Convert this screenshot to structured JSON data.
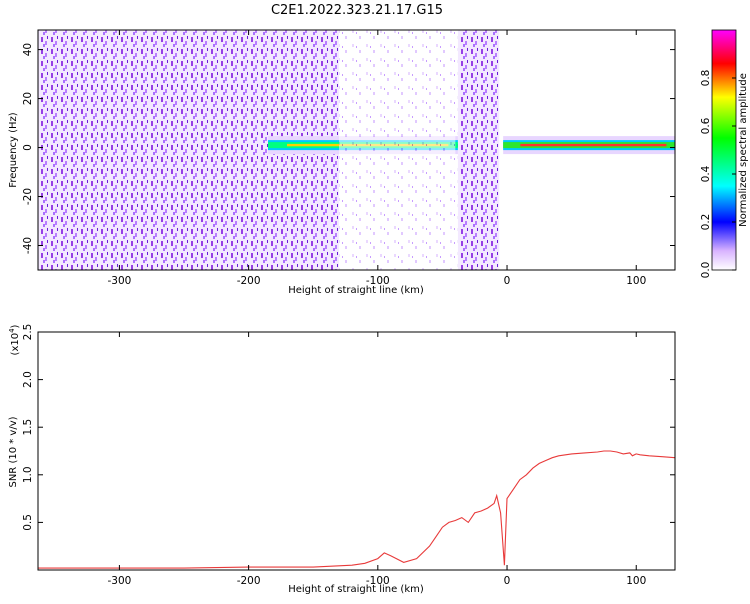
{
  "title": "C2E1.2022.323.21.17.G15",
  "chart_data": [
    {
      "type": "heatmap",
      "xlabel": "Height of straight line (km)",
      "ylabel": "Frequency (Hz)",
      "xlim": [
        -363,
        130
      ],
      "ylim": [
        -50,
        48
      ],
      "x_ticks": [
        -300,
        -200,
        -100,
        0,
        100
      ],
      "y_ticks": [
        -40,
        -20,
        0,
        20,
        40
      ],
      "colorbar": {
        "label": "Normalized spectral amplitude",
        "range": [
          0,
          1
        ],
        "ticks": [
          0.0,
          0.2,
          0.4,
          0.6,
          0.8
        ],
        "colormap": [
          "#ff00ff",
          "#ff0000",
          "#ffff00",
          "#00ff00",
          "#00ffff",
          "#0000ff",
          "#ffffff"
        ]
      },
      "regions": [
        {
          "label": "scattered noise",
          "x": [
            -363,
            -130
          ],
          "level": 0.15
        },
        {
          "label": "signal band near 0 Hz",
          "x": [
            -185,
            -38
          ],
          "freq": 1,
          "level": 0.45
        },
        {
          "label": "noise strip",
          "x": [
            -38,
            -6
          ],
          "level": 0.15
        },
        {
          "label": "strong signal band near 0 Hz",
          "x": [
            -3,
            130
          ],
          "freq": 1,
          "level": 0.65
        }
      ]
    },
    {
      "type": "line",
      "xlabel": "Height of straight line (km)",
      "ylabel": "SNR (10 * v/v)",
      "y_multiplier": "(x10",
      "y_multiplier_exp": "4",
      "y_multiplier_close": ")",
      "xlim": [
        -363,
        130
      ],
      "ylim": [
        0,
        2.5
      ],
      "x_ticks": [
        -300,
        -200,
        -100,
        0,
        100
      ],
      "y_ticks": [
        0.5,
        1.0,
        1.5,
        2.0,
        2.5
      ],
      "series": [
        {
          "color": "#e83a3a",
          "x": [
            -363,
            -300,
            -250,
            -200,
            -150,
            -120,
            -110,
            -100,
            -95,
            -90,
            -80,
            -70,
            -60,
            -55,
            -50,
            -45,
            -40,
            -35,
            -30,
            -25,
            -20,
            -15,
            -10,
            -8,
            -5,
            -2,
            0,
            5,
            10,
            15,
            20,
            25,
            30,
            35,
            40,
            50,
            60,
            70,
            75,
            80,
            85,
            90,
            95,
            97,
            100,
            103,
            110,
            120,
            130
          ],
          "y": [
            0.02,
            0.02,
            0.02,
            0.03,
            0.03,
            0.05,
            0.07,
            0.12,
            0.18,
            0.15,
            0.08,
            0.12,
            0.25,
            0.35,
            0.45,
            0.5,
            0.52,
            0.55,
            0.5,
            0.6,
            0.62,
            0.65,
            0.7,
            0.78,
            0.6,
            0.05,
            0.75,
            0.85,
            0.95,
            1.0,
            1.07,
            1.12,
            1.15,
            1.18,
            1.2,
            1.22,
            1.23,
            1.24,
            1.25,
            1.25,
            1.24,
            1.22,
            1.23,
            1.2,
            1.22,
            1.21,
            1.2,
            1.19,
            1.18
          ]
        }
      ]
    }
  ]
}
